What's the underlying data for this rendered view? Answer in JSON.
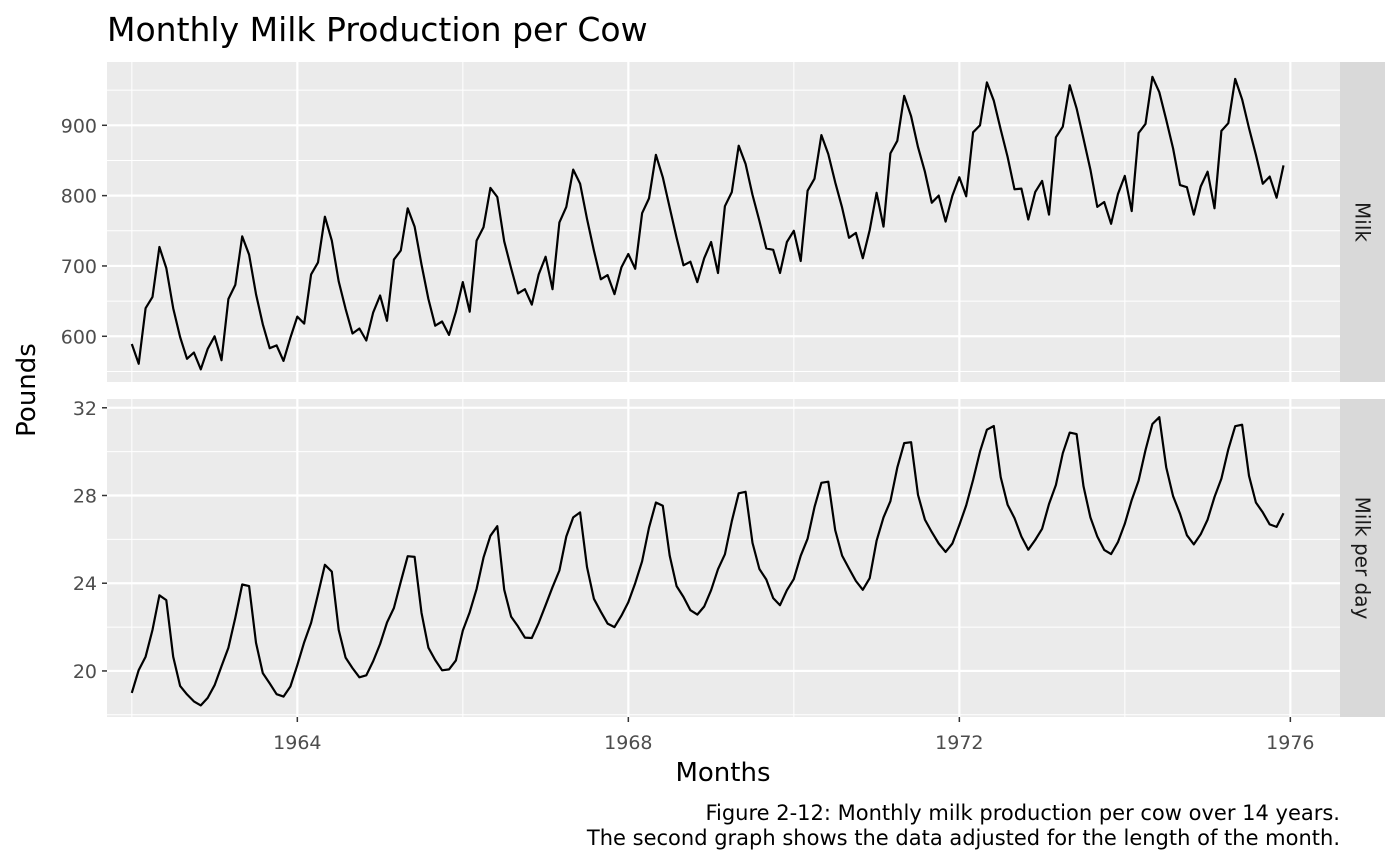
{
  "chart_data": {
    "type": "line",
    "title": "Monthly Milk Production per Cow",
    "xlabel": "Months",
    "ylabel": "Pounds",
    "caption": [
      "Figure 2-12: Monthly milk production per cow over 14 years.",
      "The second graph shows the data adjusted for the length of the month."
    ],
    "x_start": "1962-01",
    "x_frequency": "monthly",
    "xlim": [
      1961.7,
      1976.6
    ],
    "x_ticks": [
      1964,
      1968,
      1972,
      1976
    ],
    "x_tick_labels": [
      "1964",
      "1968",
      "1972",
      "1976"
    ],
    "grid": true,
    "facets": [
      {
        "strip_label": "Milk",
        "ylim": [
          535,
          990
        ],
        "y_ticks": [
          600,
          700,
          800,
          900
        ],
        "y_tick_labels": [
          "600",
          "700",
          "800",
          "900"
        ],
        "values": [
          589,
          561,
          640,
          656,
          727,
          697,
          640,
          599,
          568,
          577,
          553,
          582,
          600,
          566,
          653,
          673,
          742,
          716,
          660,
          617,
          583,
          587,
          565,
          598,
          628,
          618,
          688,
          705,
          770,
          736,
          678,
          639,
          604,
          611,
          594,
          634,
          658,
          622,
          709,
          722,
          782,
          756,
          702,
          653,
          615,
          621,
          602,
          635,
          677,
          635,
          736,
          755,
          811,
          798,
          735,
          697,
          661,
          667,
          645,
          688,
          713,
          667,
          762,
          784,
          837,
          817,
          767,
          722,
          681,
          687,
          660,
          698,
          717,
          696,
          775,
          796,
          858,
          826,
          783,
          740,
          701,
          706,
          677,
          711,
          734,
          690,
          785,
          805,
          871,
          845,
          801,
          764,
          725,
          723,
          690,
          734,
          750,
          707,
          807,
          824,
          886,
          859,
          819,
          783,
          740,
          747,
          711,
          751,
          804,
          756,
          860,
          878,
          942,
          913,
          869,
          834,
          790,
          800,
          763,
          800,
          826,
          799,
          890,
          900,
          961,
          935,
          894,
          855,
          809,
          810,
          766,
          805,
          821,
          773,
          883,
          898,
          957,
          924,
          881,
          837,
          784,
          791,
          760,
          802,
          828,
          778,
          889,
          902,
          969,
          947,
          908,
          867,
          815,
          812,
          773,
          813,
          834,
          782,
          892,
          903,
          966,
          937,
          896,
          858,
          817,
          827,
          797,
          843
        ]
      },
      {
        "strip_label": "Milk per day",
        "ylim": [
          17.9,
          32.4
        ],
        "y_ticks": [
          20,
          24,
          28,
          32
        ],
        "y_tick_labels": [
          "20",
          "24",
          "28",
          "32"
        ],
        "values": [
          19.0,
          20.04,
          20.65,
          21.87,
          23.45,
          23.23,
          20.65,
          19.32,
          18.93,
          18.61,
          18.43,
          18.77,
          19.35,
          20.21,
          21.06,
          22.43,
          23.94,
          23.87,
          21.29,
          19.9,
          19.43,
          18.94,
          18.83,
          19.29,
          20.26,
          21.31,
          22.19,
          23.5,
          24.84,
          24.53,
          21.87,
          20.61,
          20.13,
          19.71,
          19.8,
          20.45,
          21.23,
          22.21,
          22.87,
          24.07,
          25.23,
          25.2,
          22.65,
          21.06,
          20.5,
          20.03,
          20.07,
          20.48,
          21.84,
          22.68,
          23.74,
          25.17,
          26.16,
          26.6,
          23.71,
          22.48,
          22.03,
          21.52,
          21.5,
          22.19,
          23.0,
          23.82,
          24.58,
          26.13,
          27.0,
          27.23,
          24.74,
          23.29,
          22.7,
          22.16,
          22.0,
          22.52,
          23.13,
          24.0,
          25.0,
          26.53,
          27.68,
          27.53,
          25.26,
          23.87,
          23.37,
          22.77,
          22.57,
          22.94,
          23.68,
          24.64,
          25.32,
          26.83,
          28.1,
          28.17,
          25.84,
          24.65,
          24.17,
          23.32,
          23.0,
          23.68,
          24.19,
          25.25,
          26.03,
          27.47,
          28.58,
          28.63,
          26.42,
          25.26,
          24.67,
          24.1,
          23.7,
          24.23,
          25.94,
          27.0,
          27.74,
          29.27,
          30.39,
          30.43,
          28.03,
          26.9,
          26.33,
          25.81,
          25.43,
          25.81,
          26.65,
          27.55,
          28.71,
          30.0,
          31.0,
          31.17,
          28.84,
          27.58,
          26.97,
          26.13,
          25.53,
          25.97,
          26.48,
          27.61,
          28.48,
          29.93,
          30.87,
          30.8,
          28.42,
          27.0,
          26.13,
          25.52,
          25.33,
          25.87,
          26.71,
          27.79,
          28.68,
          30.07,
          31.26,
          31.57,
          29.29,
          27.97,
          27.17,
          26.19,
          25.77,
          26.23,
          26.9,
          27.93,
          28.77,
          30.1,
          31.16,
          31.23,
          28.9,
          27.68,
          27.23,
          26.68,
          26.57,
          27.19
        ]
      }
    ]
  }
}
